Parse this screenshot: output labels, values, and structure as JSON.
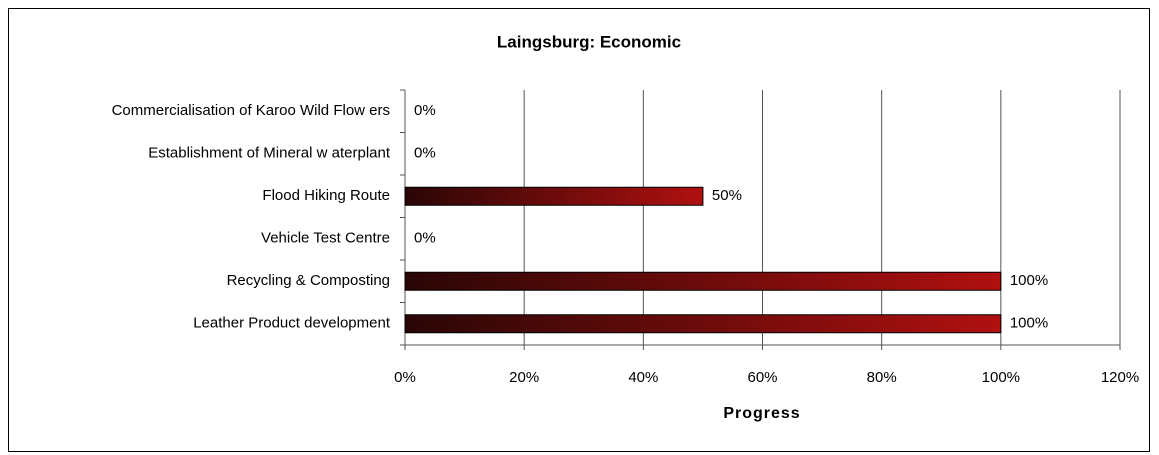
{
  "chart_data": {
    "type": "hbar",
    "title": "Laingsburg: Economic",
    "x_label": "Progress",
    "categories": [
      "Commercialisation of Karoo Wild Flow ers",
      "Establishment of Mineral w aterplant",
      "Flood Hiking Route",
      "Vehicle Test Centre",
      "Recycling & Composting",
      "Leather Product development"
    ],
    "values": [
      0,
      0,
      50,
      0,
      100,
      100
    ],
    "value_labels": [
      "0%",
      "0%",
      "50%",
      "0%",
      "100%",
      "100%"
    ],
    "color": "#b01010",
    "xlim": [
      0,
      120
    ],
    "xticks": [
      {
        "value": 0,
        "label": "0%"
      },
      {
        "value": 20,
        "label": "20%"
      },
      {
        "value": 40,
        "label": "40%"
      },
      {
        "value": 60,
        "label": "60%"
      },
      {
        "value": 80,
        "label": "80%"
      },
      {
        "value": 100,
        "label": "100%"
      },
      {
        "value": 120,
        "label": "120%"
      }
    ],
    "grid": true
  }
}
